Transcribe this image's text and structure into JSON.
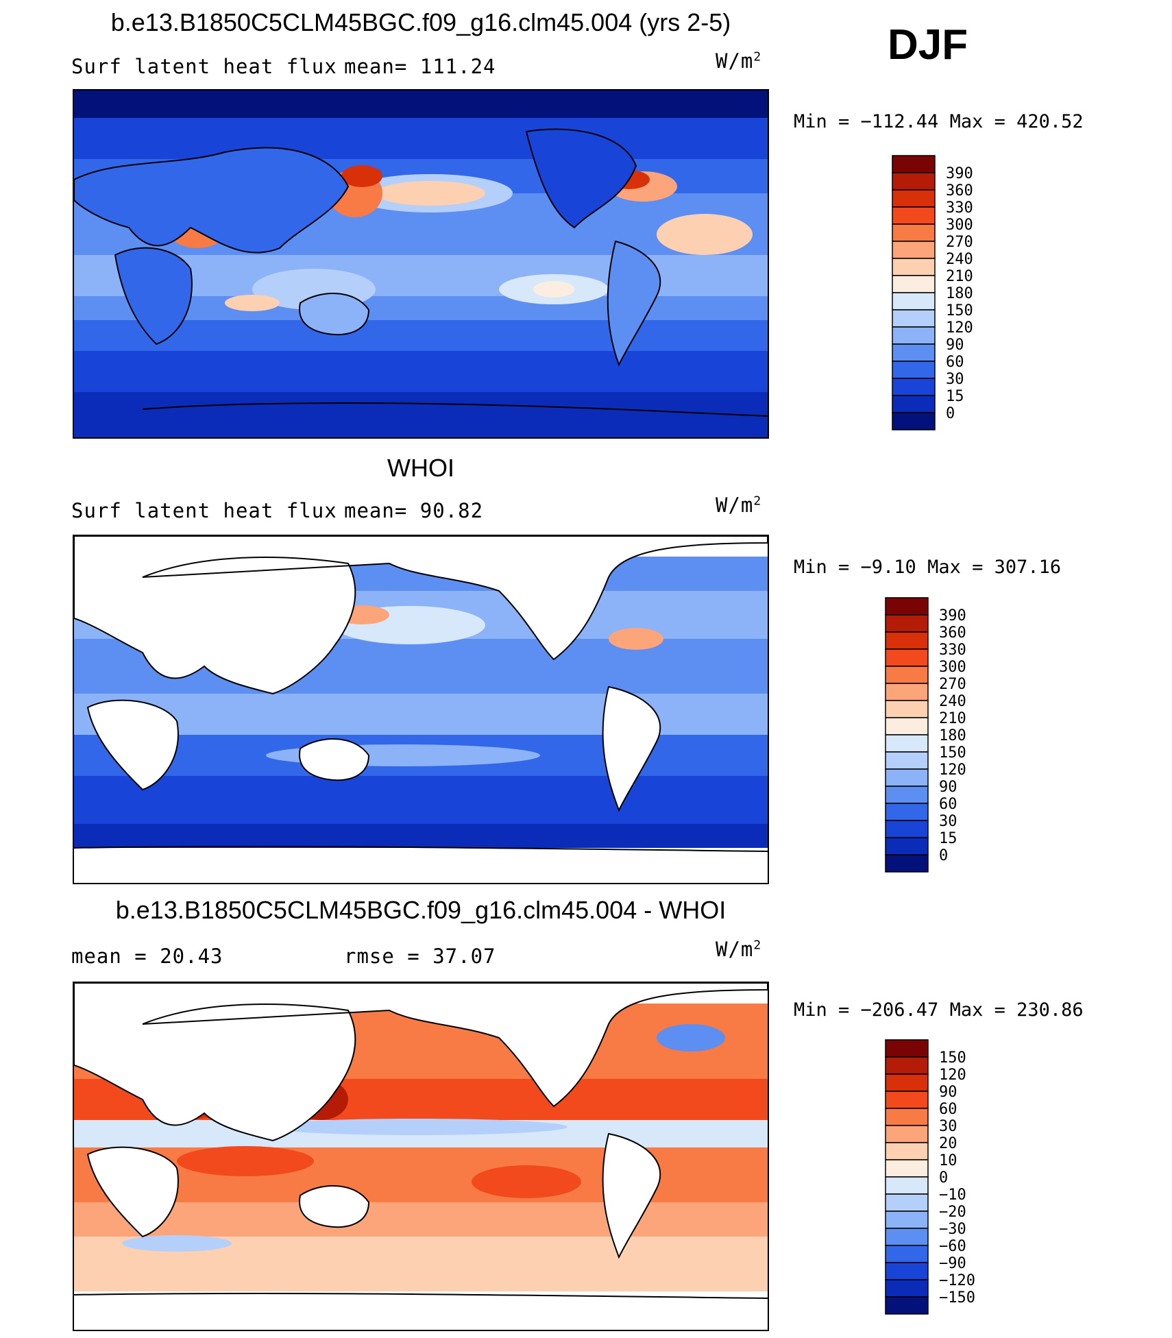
{
  "season": "DJF",
  "panels": [
    {
      "id": "model",
      "title": "b.e13.B1850C5CLM45BGC.f09_g16.clm45.004 (yrs 2-5)",
      "left_label": "Surf latent heat flux",
      "stat_label": "mean= 111.24",
      "units": "W/m",
      "units_sup": "2",
      "min_max": "Min = −112.44 Max = 420.52",
      "colorbar": {
        "labels": [
          "390",
          "360",
          "330",
          "300",
          "270",
          "240",
          "210",
          "180",
          "150",
          "120",
          "90",
          "60",
          "30",
          "15",
          "0"
        ],
        "colors": [
          "#7a0403",
          "#b41c08",
          "#d83008",
          "#f24a1c",
          "#f87a45",
          "#fca47a",
          "#fdd0b2",
          "#fbeee0",
          "#d8e8fb",
          "#b4d0fa",
          "#8cb2f7",
          "#5d8ef2",
          "#3367ea",
          "#1845d8",
          "#0a2cb8",
          "#03117a"
        ]
      },
      "chart_data": {
        "type": "heatmap",
        "title": "b.e13.B1850C5CLM45BGC.f09_g16.clm45.004 (yrs 2-5)",
        "variable": "Surf latent heat flux",
        "units": "W/m2",
        "mean": 111.24,
        "min": -112.44,
        "max": 420.52,
        "contour_levels": [
          0,
          15,
          30,
          60,
          90,
          120,
          150,
          180,
          210,
          240,
          270,
          300,
          330,
          360,
          390
        ]
      }
    },
    {
      "id": "obs",
      "title": "WHOI",
      "left_label": "Surf latent heat flux",
      "stat_label": "mean=  90.82",
      "units": "W/m",
      "units_sup": "2",
      "min_max": "Min =  −9.10 Max = 307.16",
      "colorbar": {
        "labels": [
          "390",
          "360",
          "330",
          "300",
          "270",
          "240",
          "210",
          "180",
          "150",
          "120",
          "90",
          "60",
          "30",
          "15",
          "0"
        ],
        "colors": [
          "#7a0403",
          "#b41c08",
          "#d83008",
          "#f24a1c",
          "#f87a45",
          "#fca47a",
          "#fdd0b2",
          "#fbeee0",
          "#d8e8fb",
          "#b4d0fa",
          "#8cb2f7",
          "#5d8ef2",
          "#3367ea",
          "#1845d8",
          "#0a2cb8",
          "#03117a"
        ]
      },
      "chart_data": {
        "type": "heatmap",
        "title": "WHOI",
        "variable": "Surf latent heat flux",
        "units": "W/m2",
        "mean": 90.82,
        "min": -9.1,
        "max": 307.16,
        "contour_levels": [
          0,
          15,
          30,
          60,
          90,
          120,
          150,
          180,
          210,
          240,
          270,
          300,
          330,
          360,
          390
        ]
      }
    },
    {
      "id": "diff",
      "title": "b.e13.B1850C5CLM45BGC.f09_g16.clm45.004 - WHOI",
      "left_label": "mean =   20.43",
      "stat_label": "rmse =   37.07",
      "units": "W/m",
      "units_sup": "2",
      "min_max": "Min = −206.47 Max = 230.86",
      "colorbar": {
        "labels": [
          "150",
          "120",
          "90",
          "60",
          "30",
          "20",
          "10",
          "0",
          "−10",
          "−20",
          "−30",
          "−60",
          "−90",
          "−120",
          "−150"
        ],
        "colors": [
          "#7a0403",
          "#b41c08",
          "#d83008",
          "#f24a1c",
          "#f87a45",
          "#fca47a",
          "#fdd0b2",
          "#fbeee0",
          "#d8e8fb",
          "#b4d0fa",
          "#8cb2f7",
          "#5d8ef2",
          "#3367ea",
          "#1845d8",
          "#0a2cb8",
          "#03117a"
        ]
      },
      "chart_data": {
        "type": "heatmap",
        "title": "b.e13.B1850C5CLM45BGC.f09_g16.clm45.004 - WHOI",
        "variable": "Surf latent heat flux difference",
        "units": "W/m2",
        "mean": 20.43,
        "rmse": 37.07,
        "min": -206.47,
        "max": 230.86,
        "contour_levels": [
          -150,
          -120,
          -90,
          -60,
          -30,
          -20,
          -10,
          0,
          10,
          20,
          30,
          60,
          90,
          120,
          150
        ]
      }
    }
  ]
}
